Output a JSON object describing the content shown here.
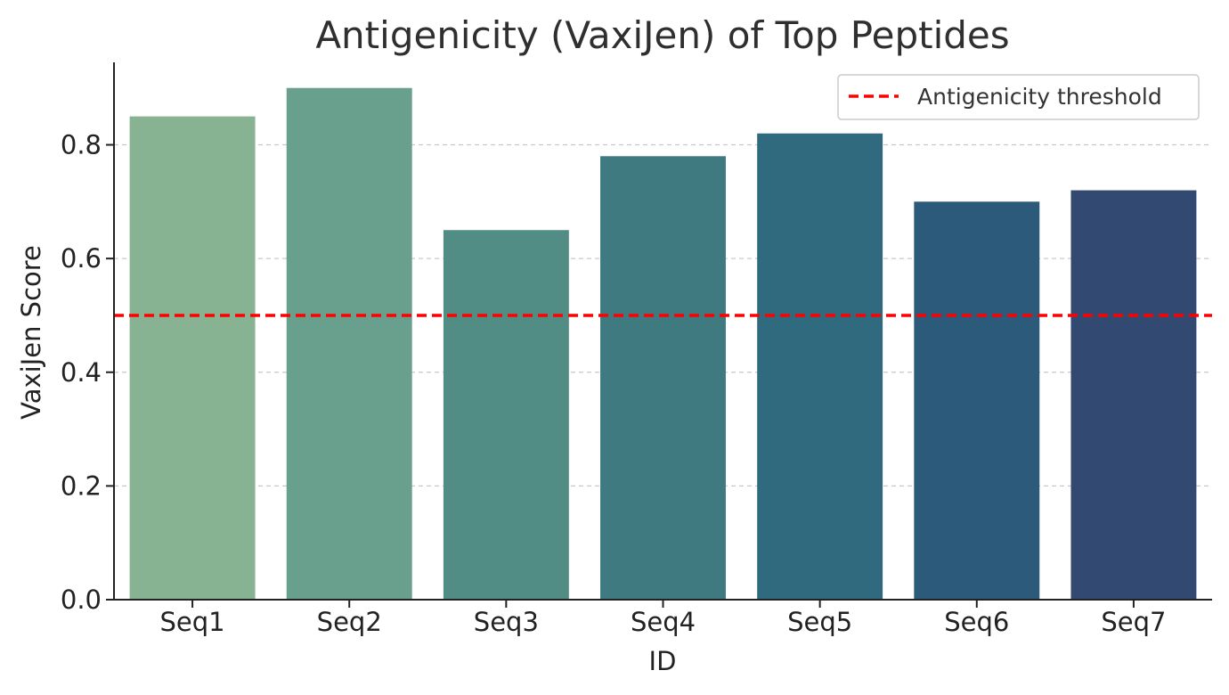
{
  "chart_data": {
    "type": "bar",
    "title": "Antigenicity (VaxiJen) of Top Peptides",
    "xlabel": "ID",
    "ylabel": "VaxiJen Score",
    "categories": [
      "Seq1",
      "Seq2",
      "Seq3",
      "Seq4",
      "Seq5",
      "Seq6",
      "Seq7"
    ],
    "values": [
      0.85,
      0.9,
      0.65,
      0.78,
      0.82,
      0.7,
      0.72
    ],
    "bar_colors": [
      "#88b393",
      "#69a08d",
      "#518c85",
      "#3f7a80",
      "#2f6a7e",
      "#2b5a7a",
      "#324a72"
    ],
    "ylim": [
      0,
      0.945
    ],
    "yticks": [
      0.0,
      0.2,
      0.4,
      0.6,
      0.8
    ],
    "ytick_labels": [
      "0.0",
      "0.2",
      "0.4",
      "0.6",
      "0.8"
    ],
    "grid": "y-dashed",
    "reference_line": {
      "label": "Antigenicity threshold",
      "value": 0.5,
      "color": "#ff0000",
      "style": "dashed"
    },
    "legend": {
      "placement": "top-right",
      "entries": [
        "Antigenicity threshold"
      ]
    }
  }
}
